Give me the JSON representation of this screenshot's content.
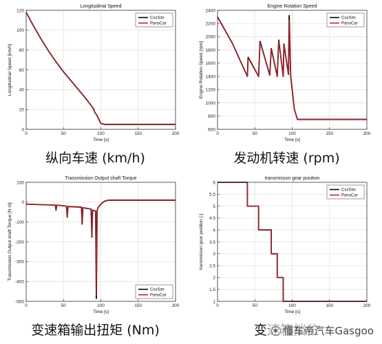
{
  "colors": {
    "cxxsim": "#000000",
    "panocar": "#c0202a",
    "grid": "#e3e3e3",
    "axis": "#333333"
  },
  "watermark": {
    "text": "懂车帝汽车Gasgoo",
    "icon": "camera-circle-icon"
  },
  "chart_data": [
    {
      "type": "line",
      "title": "Longitudinal Speed",
      "xlabel": "Time [s]",
      "ylabel": "Longitudinal Speed [km/h]",
      "caption": "纵向车速 (km/h)",
      "xlim": [
        0,
        200
      ],
      "ylim": [
        0,
        120
      ],
      "xticks": [
        0,
        50,
        100,
        150,
        200
      ],
      "yticks": [
        0,
        20,
        40,
        60,
        80,
        100,
        120
      ],
      "legend": "top-right",
      "grid": true,
      "series": [
        {
          "name": "CxxSim",
          "x": [
            0,
            10,
            20,
            30,
            40,
            50,
            60,
            70,
            80,
            85,
            90,
            92,
            95,
            98,
            100,
            105,
            110,
            150,
            200
          ],
          "y": [
            118,
            104,
            91,
            79,
            68,
            58,
            49,
            40,
            31,
            26,
            21,
            17,
            14,
            9,
            6,
            5,
            5,
            5,
            5
          ]
        },
        {
          "name": "PanoCar",
          "x": [
            0,
            10,
            20,
            30,
            40,
            50,
            60,
            70,
            80,
            85,
            90,
            92,
            95,
            98,
            100,
            105,
            110,
            150,
            200
          ],
          "y": [
            118,
            104,
            91,
            79,
            68,
            58,
            49,
            40,
            31,
            26,
            21,
            17,
            14,
            9,
            6,
            5,
            5,
            5,
            5
          ]
        }
      ]
    },
    {
      "type": "line",
      "title": "Engine Rotation Speed",
      "xlabel": "Time [s]",
      "ylabel": "Engine Rotation Speed [rpm]",
      "caption": "发动机转速 (rpm)",
      "xlim": [
        0,
        200
      ],
      "ylim": [
        600,
        2400
      ],
      "xticks": [
        0,
        50,
        100,
        150,
        200
      ],
      "yticks": [
        600,
        800,
        1000,
        1200,
        1400,
        1600,
        1800,
        2000,
        2200,
        2400
      ],
      "legend": "top-right",
      "grid": true,
      "series": [
        {
          "name": "CxxSim",
          "x": [
            0,
            20,
            40,
            41,
            55,
            57,
            70,
            72,
            80,
            82,
            88,
            89,
            95,
            96,
            98,
            103,
            107,
            200
          ],
          "y": [
            2300,
            1900,
            1400,
            1690,
            1400,
            1930,
            1420,
            1820,
            1400,
            1950,
            1400,
            1890,
            1430,
            2320,
            1400,
            900,
            750,
            750
          ]
        },
        {
          "name": "PanoCar",
          "x": [
            0,
            20,
            40,
            41,
            55,
            57,
            70,
            72,
            80,
            82,
            88,
            89,
            95,
            96,
            98,
            103,
            107,
            200
          ],
          "y": [
            2300,
            1900,
            1400,
            1680,
            1400,
            1920,
            1420,
            1810,
            1400,
            1940,
            1400,
            1880,
            1430,
            2250,
            1400,
            900,
            750,
            750
          ]
        }
      ]
    },
    {
      "type": "line",
      "title": "Trassmission Output shaft Torque",
      "xlabel": "Time [s]",
      "ylabel": "Trassmission Output shaft Torque [N m]",
      "caption": "变速箱输出扭矩 (Nm)",
      "xlim": [
        0,
        200
      ],
      "ylim": [
        -500,
        100
      ],
      "xticks": [
        0,
        50,
        100,
        150,
        200
      ],
      "yticks": [
        -500,
        -400,
        -300,
        -200,
        -100,
        0,
        100
      ],
      "legend": "bottom-right",
      "grid": true,
      "series": [
        {
          "name": "CxxSim",
          "x": [
            0,
            39,
            40,
            41,
            54,
            55,
            56,
            74,
            75,
            76,
            87,
            88,
            89,
            93,
            94,
            95,
            96,
            100,
            105,
            110,
            200
          ],
          "y": [
            -10,
            -15,
            -40,
            -15,
            -20,
            -75,
            -22,
            -25,
            -110,
            -28,
            -35,
            -175,
            -40,
            -45,
            -485,
            -45,
            -30,
            -10,
            5,
            10,
            10
          ]
        },
        {
          "name": "PanoCar",
          "x": [
            0,
            39,
            40,
            41,
            54,
            55,
            56,
            74,
            75,
            76,
            87,
            88,
            89,
            93,
            94,
            95,
            96,
            100,
            105,
            110,
            200
          ],
          "y": [
            -10,
            -15,
            -38,
            -15,
            -20,
            -72,
            -22,
            -25,
            -105,
            -28,
            -35,
            -170,
            -40,
            -45,
            -470,
            -45,
            -30,
            -10,
            5,
            10,
            10
          ]
        }
      ]
    },
    {
      "type": "line",
      "title": "transmisson gear position",
      "xlabel": "Time [s]",
      "ylabel": "transmisson gear position [-]",
      "caption": "变速箱挡位",
      "xlim": [
        0,
        200
      ],
      "ylim": [
        1,
        6
      ],
      "xticks": [
        0,
        50,
        100,
        150,
        200
      ],
      "yticks": [
        1,
        1.5,
        2,
        2.5,
        3,
        3.5,
        4,
        4.5,
        5,
        5.5,
        6
      ],
      "legend": "top-right",
      "grid": true,
      "series": [
        {
          "name": "CxxSim",
          "x": [
            0,
            40,
            40,
            55,
            55,
            72,
            72,
            80,
            80,
            88,
            88,
            96,
            96,
            200
          ],
          "y": [
            6,
            6,
            5,
            5,
            4,
            4,
            3,
            3,
            2,
            2,
            1,
            1,
            1,
            1
          ]
        },
        {
          "name": "PanoCar",
          "x": [
            0,
            40,
            40,
            55,
            55,
            72,
            72,
            80,
            80,
            88,
            88,
            96,
            96,
            200
          ],
          "y": [
            6,
            6,
            5,
            5,
            4,
            4,
            3,
            3,
            2,
            2,
            1,
            1,
            1,
            1
          ]
        }
      ]
    }
  ]
}
